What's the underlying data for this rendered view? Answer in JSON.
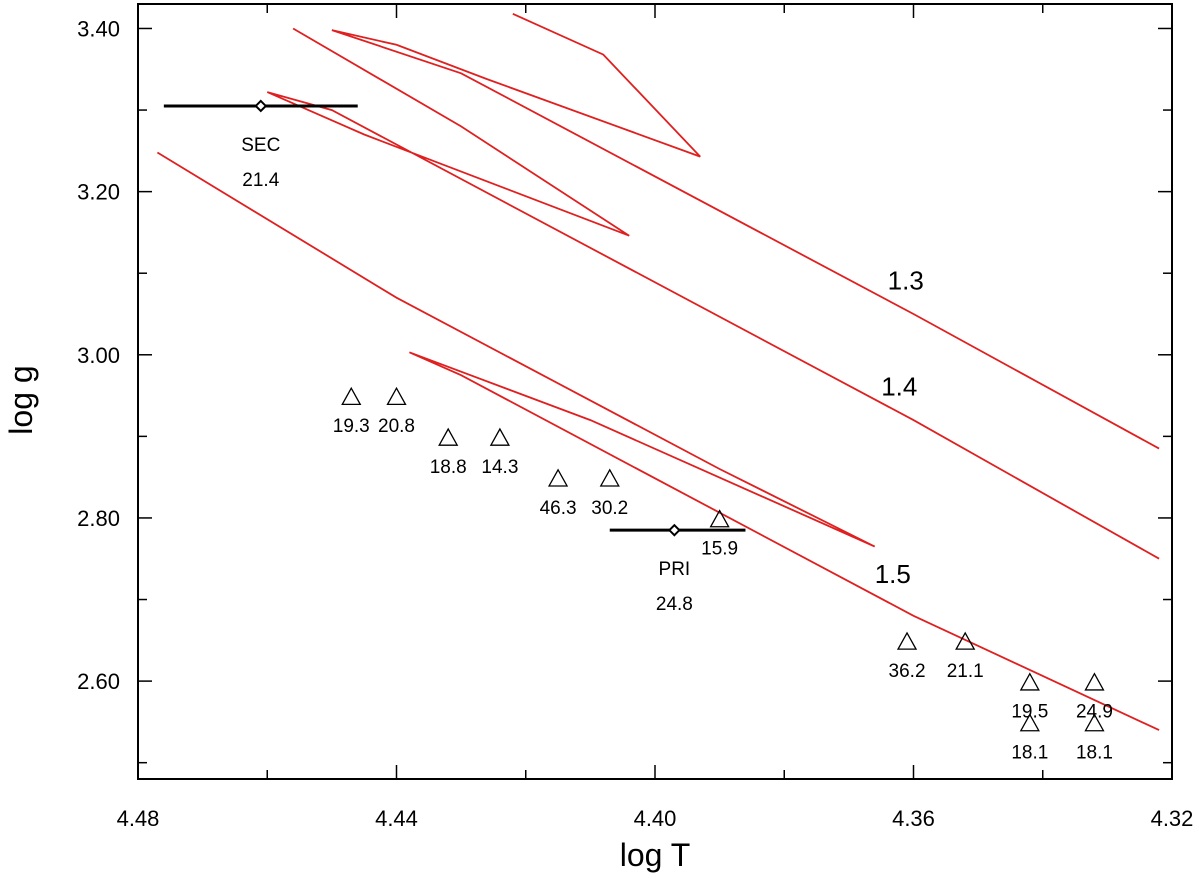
{
  "chart_data": {
    "type": "scatter",
    "title": "",
    "xlabel": "log T",
    "ylabel": "log g",
    "xlim": [
      4.48,
      4.32
    ],
    "ylim": [
      2.48,
      3.43
    ],
    "x_reversed": true,
    "xticks": [
      "4.48",
      "4.44",
      "4.40",
      "4.36",
      "4.32"
    ],
    "yticks": [
      "2.60",
      "2.80",
      "3.00",
      "3.20",
      "3.40"
    ],
    "colors": {
      "tracks": "#e02020",
      "stars": "#000000"
    },
    "tracks": [
      {
        "name": "1.3",
        "label_at": [
          4.364,
          3.08
        ],
        "points": [
          [
            4.422,
            3.418
          ],
          [
            4.408,
            3.368
          ],
          [
            4.393,
            3.243
          ],
          [
            4.426,
            3.338
          ],
          [
            4.44,
            3.38
          ],
          [
            4.45,
            3.398
          ],
          [
            4.43,
            3.345
          ],
          [
            4.36,
            3.05
          ],
          [
            4.322,
            2.885
          ]
        ]
      },
      {
        "name": "1.4",
        "label_at": [
          4.365,
          2.95
        ],
        "points": [
          [
            4.456,
            3.4
          ],
          [
            4.43,
            3.28
          ],
          [
            4.404,
            3.146
          ],
          [
            4.445,
            3.27
          ],
          [
            4.46,
            3.322
          ],
          [
            4.45,
            3.3
          ],
          [
            4.36,
            2.92
          ],
          [
            4.322,
            2.75
          ]
        ]
      },
      {
        "name": "1.5",
        "label_at": [
          4.366,
          2.72
        ],
        "points": [
          [
            4.477,
            3.248
          ],
          [
            4.44,
            3.07
          ],
          [
            4.39,
            2.86
          ],
          [
            4.366,
            2.765
          ],
          [
            4.41,
            2.92
          ],
          [
            4.438,
            3.003
          ],
          [
            4.43,
            2.975
          ],
          [
            4.36,
            2.68
          ],
          [
            4.322,
            2.54
          ]
        ]
      }
    ],
    "binary": [
      {
        "name": "SEC",
        "label": "SEC",
        "value": "21.4",
        "x": 4.461,
        "y": 3.305,
        "xerr": [
          4.476,
          4.446
        ]
      },
      {
        "name": "PRI",
        "label": "PRI",
        "value": "24.8",
        "x": 4.397,
        "y": 2.785,
        "xerr": [
          4.407,
          4.386
        ]
      }
    ],
    "points": [
      {
        "x": 4.447,
        "y": 2.948,
        "label": "19.3"
      },
      {
        "x": 4.44,
        "y": 2.948,
        "label": "20.8"
      },
      {
        "x": 4.432,
        "y": 2.898,
        "label": "18.8"
      },
      {
        "x": 4.424,
        "y": 2.898,
        "label": "14.3"
      },
      {
        "x": 4.415,
        "y": 2.848,
        "label": "46.3"
      },
      {
        "x": 4.407,
        "y": 2.848,
        "label": "30.2"
      },
      {
        "x": 4.39,
        "y": 2.798,
        "label": "15.9"
      },
      {
        "x": 4.361,
        "y": 2.648,
        "label": "36.2"
      },
      {
        "x": 4.352,
        "y": 2.648,
        "label": "21.1"
      },
      {
        "x": 4.342,
        "y": 2.598,
        "label": "19.5"
      },
      {
        "x": 4.332,
        "y": 2.598,
        "label": "24.9"
      },
      {
        "x": 4.342,
        "y": 2.548,
        "label": "18.1"
      },
      {
        "x": 4.332,
        "y": 2.548,
        "label": "18.1"
      }
    ]
  }
}
